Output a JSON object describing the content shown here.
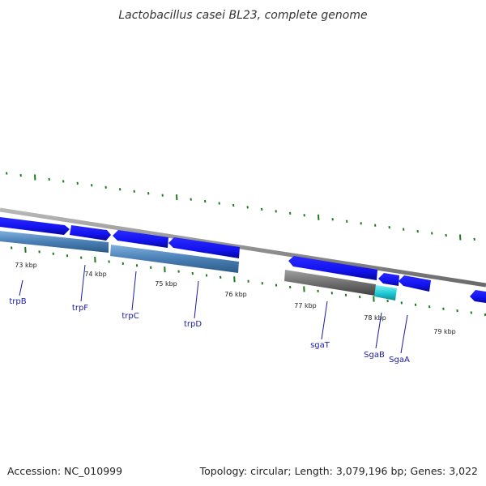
{
  "title": "Lactobacillus casei BL23, complete genome",
  "footer": {
    "accession": "Accession: NC_010999",
    "summary": "Topology: circular; Length: 3,079,196 bp; Genes: 3,022"
  },
  "ticks": [
    "73 kbp",
    "74 kbp",
    "75 kbp",
    "76 kbp",
    "77 kbp",
    "78 kbp",
    "79 kbp"
  ],
  "genes": [
    "trpB",
    "trpF",
    "trpC",
    "trpD",
    "sgaT",
    "SgaB",
    "SgaA"
  ],
  "colors": {
    "cds": "#1a1aff",
    "cds_dark": "#0a0a99",
    "feature": "#4a7fb5",
    "feature_dark": "#2c5a85",
    "gray_feature": "#707070",
    "cyan_feature": "#22cdd8",
    "backbone": "#8a8a8a",
    "tick": "#1f7a1f",
    "label": "#1a1aa6"
  }
}
